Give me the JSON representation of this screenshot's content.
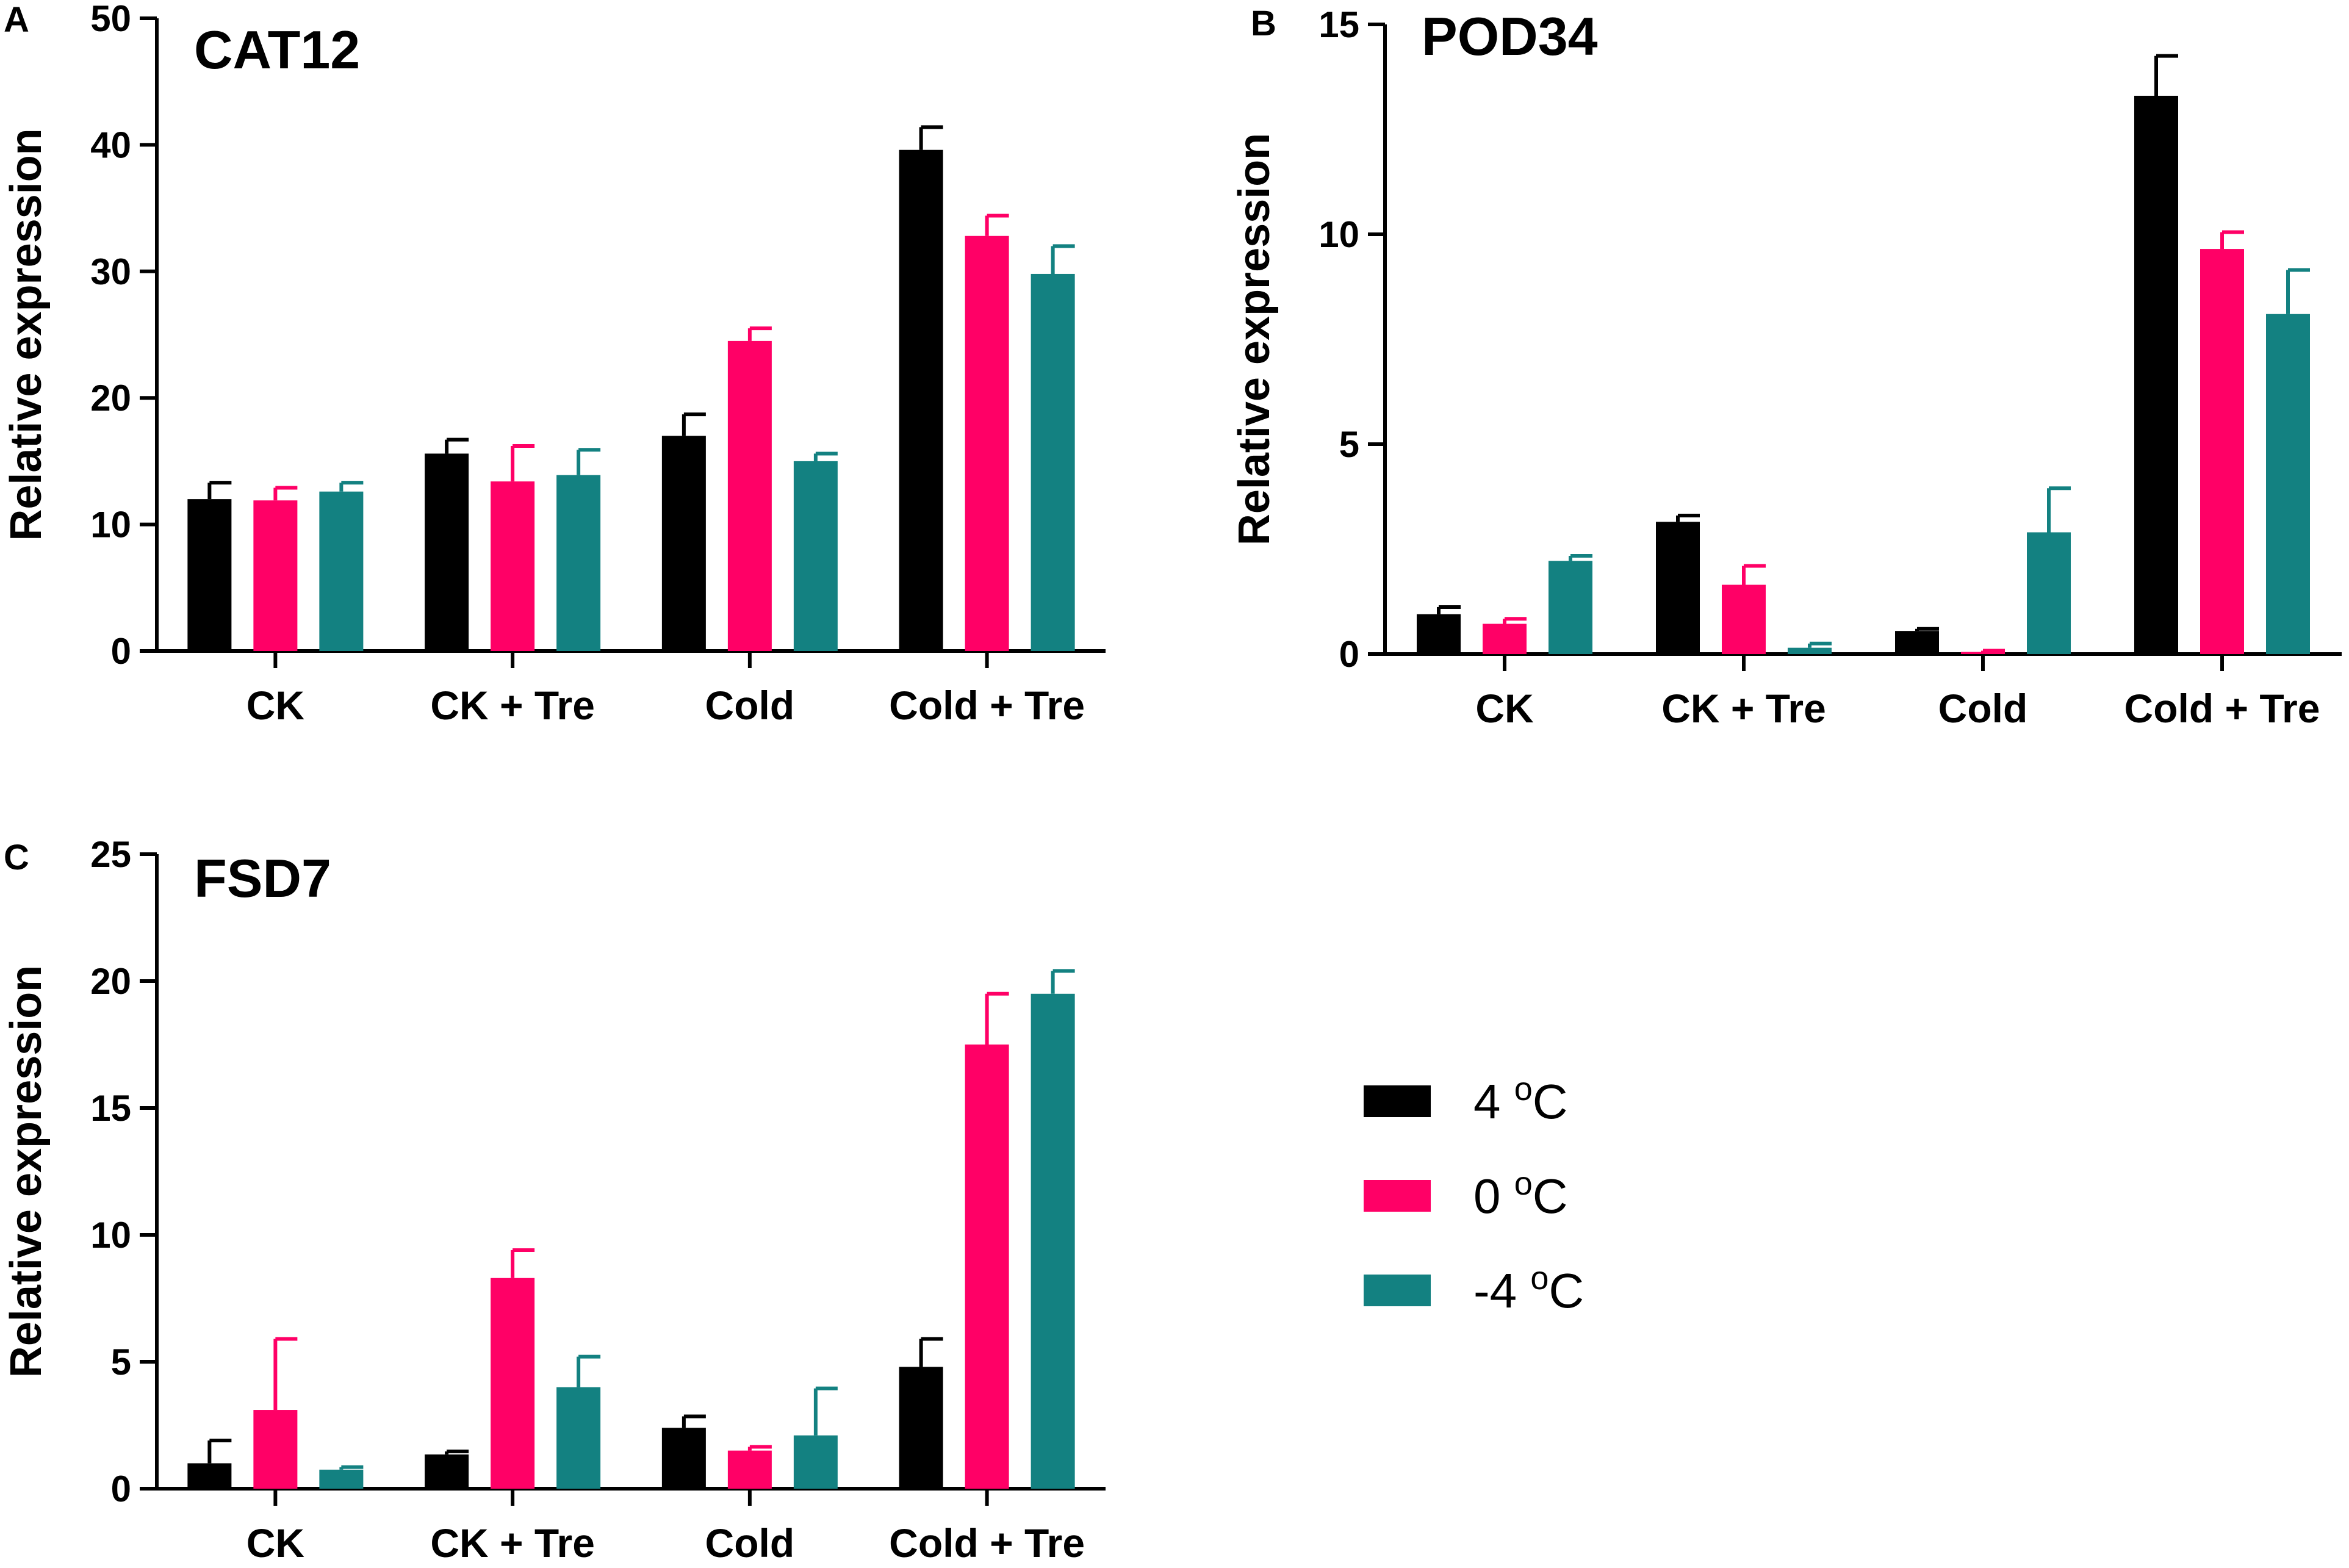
{
  "colors": {
    "series_4C": "#000000",
    "series_0C": "#ff0066",
    "series_m4C": "#138181",
    "axis": "#000000"
  },
  "legend": {
    "entries": [
      {
        "label": "4 ",
        "sup": "o",
        "unit": "C",
        "color": "#000000"
      },
      {
        "label": "0 ",
        "sup": "o",
        "unit": "C",
        "color": "#ff0066"
      },
      {
        "label": "-4 ",
        "sup": "o",
        "unit": "C",
        "color": "#138181"
      }
    ]
  },
  "chart_data": [
    {
      "type": "bar",
      "panel": "A",
      "title": "CAT12",
      "xlabel": "",
      "ylabel": "Relative expression",
      "ylim": [
        0,
        50
      ],
      "yticks": [
        0,
        10,
        20,
        30,
        40,
        50
      ],
      "categories": [
        "CK",
        "CK + Tre",
        "Cold",
        "Cold + Tre"
      ],
      "series": [
        {
          "name": "4 oC",
          "values": [
            12.0,
            15.6,
            17.0,
            39.6
          ],
          "errors": [
            1.3,
            1.1,
            1.7,
            1.8
          ]
        },
        {
          "name": "0 oC",
          "values": [
            11.9,
            13.4,
            24.5,
            32.8
          ],
          "errors": [
            1.0,
            2.8,
            1.0,
            1.6
          ]
        },
        {
          "name": "-4 oC",
          "values": [
            12.6,
            13.9,
            15.0,
            29.8
          ],
          "errors": [
            0.7,
            2.0,
            0.6,
            2.2
          ]
        }
      ]
    },
    {
      "type": "bar",
      "panel": "B",
      "title": "POD34",
      "xlabel": "",
      "ylabel": "Relative expression",
      "ylim": [
        0,
        15
      ],
      "yticks": [
        0,
        5,
        10,
        15
      ],
      "categories": [
        "CK",
        "CK + Tre",
        "Cold",
        "Cold + Tre"
      ],
      "series": [
        {
          "name": "4 oC",
          "values": [
            0.95,
            3.15,
            0.55,
            13.3
          ],
          "errors": [
            0.17,
            0.15,
            0.05,
            0.95
          ]
        },
        {
          "name": "0 oC",
          "values": [
            0.72,
            1.65,
            0.05,
            9.65
          ],
          "errors": [
            0.12,
            0.45,
            0.03,
            0.4
          ]
        },
        {
          "name": "-4 oC",
          "values": [
            2.22,
            0.15,
            2.9,
            8.1
          ],
          "errors": [
            0.12,
            0.1,
            1.05,
            1.05
          ]
        }
      ]
    },
    {
      "type": "bar",
      "panel": "C",
      "title": "FSD7",
      "xlabel": "",
      "ylabel": "Relative expression",
      "ylim": [
        0,
        25
      ],
      "yticks": [
        0,
        5,
        10,
        15,
        20,
        25
      ],
      "categories": [
        "CK",
        "CK + Tre",
        "Cold",
        "Cold + Tre"
      ],
      "series": [
        {
          "name": "4 oC",
          "values": [
            1.0,
            1.35,
            2.4,
            4.8
          ],
          "errors": [
            0.9,
            0.12,
            0.45,
            1.1
          ]
        },
        {
          "name": "0 oC",
          "values": [
            3.1,
            8.3,
            1.5,
            17.5
          ],
          "errors": [
            2.8,
            1.1,
            0.15,
            2.0
          ]
        },
        {
          "name": "-4 oC",
          "values": [
            0.75,
            4.0,
            2.1,
            19.5
          ],
          "errors": [
            0.1,
            1.2,
            1.85,
            0.9
          ]
        }
      ]
    }
  ]
}
